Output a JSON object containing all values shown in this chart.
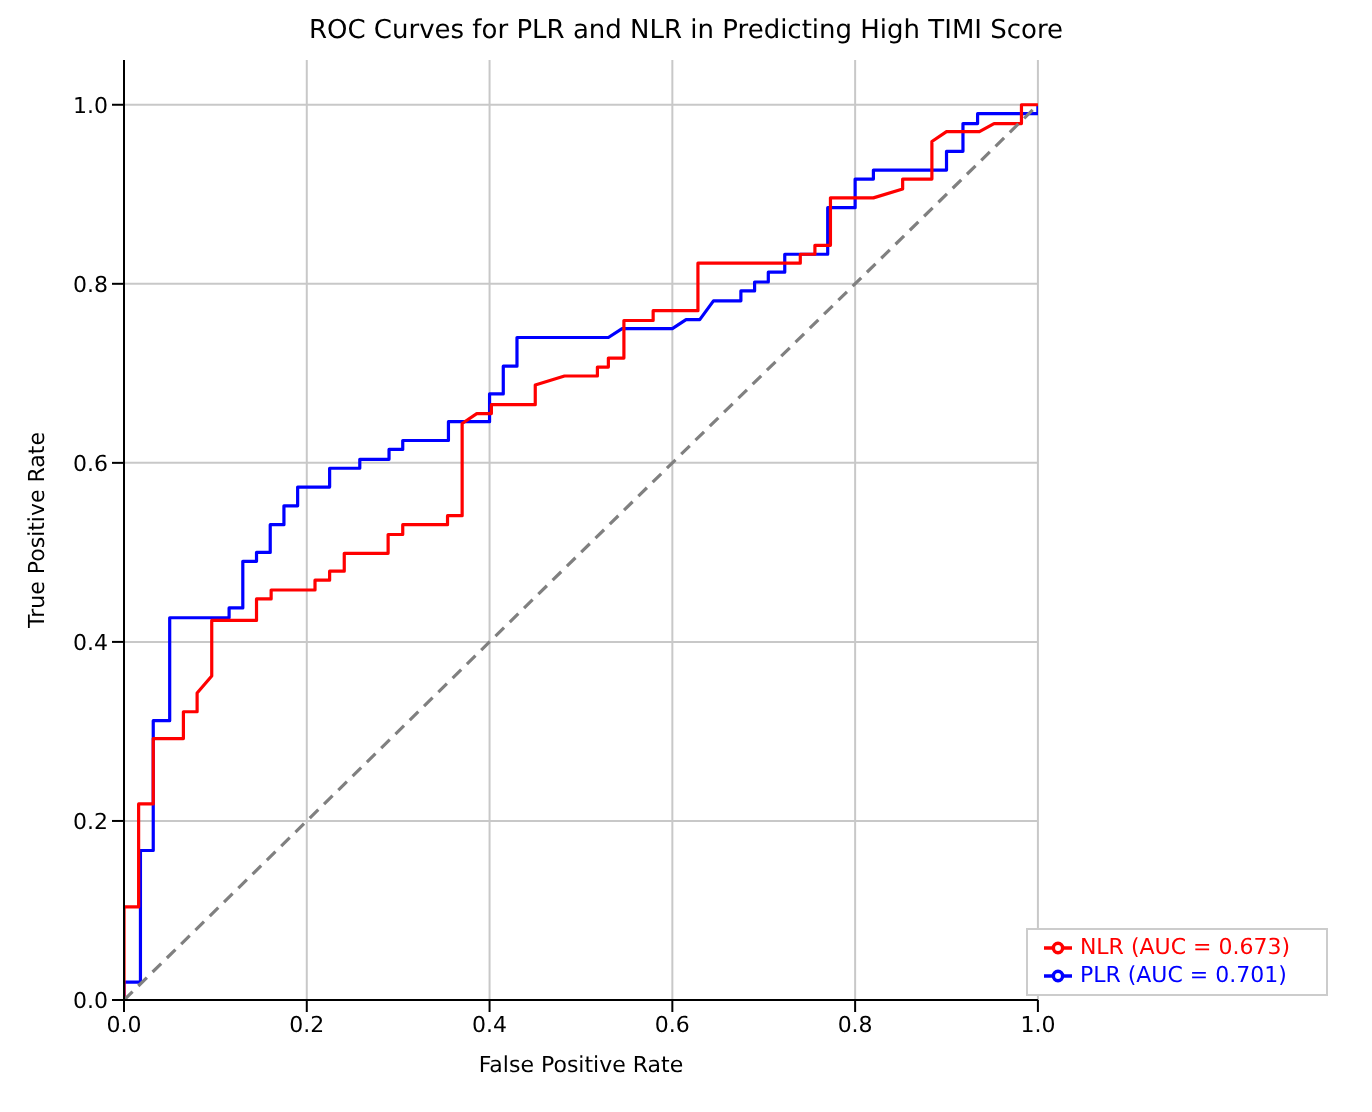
{
  "chart_data": {
    "type": "line",
    "title": "ROC Curves for PLR and NLR in Predicting High TIMI Score",
    "xlabel": "False Positive Rate",
    "ylabel": "True Positive Rate",
    "xlim": [
      0,
      1
    ],
    "ylim": [
      0,
      1.05
    ],
    "xticks": [
      {
        "value": 0,
        "label": "0.0"
      },
      {
        "value": 0.2,
        "label": "0.2"
      },
      {
        "value": 0.4,
        "label": "0.4"
      },
      {
        "value": 0.6,
        "label": "0.6"
      },
      {
        "value": 0.8,
        "label": "0.8"
      },
      {
        "value": 1,
        "label": "1.0"
      }
    ],
    "yticks": [
      {
        "value": 0,
        "label": "0.0"
      },
      {
        "value": 0.2,
        "label": "0.2"
      },
      {
        "value": 0.4,
        "label": "0.4"
      },
      {
        "value": 0.6,
        "label": "0.6"
      },
      {
        "value": 0.8,
        "label": "0.8"
      },
      {
        "value": 1,
        "label": "1.0"
      }
    ],
    "grid": true,
    "legend": "bottom right",
    "series": [
      {
        "name": "PLR (AUC = 0.701)",
        "color": "#0000ff",
        "x": [
          0,
          0,
          0.018,
          0.018,
          0.032,
          0.032,
          0.05,
          0.05,
          0.115,
          0.115,
          0.13,
          0.13,
          0.145,
          0.145,
          0.16,
          0.16,
          0.175,
          0.175,
          0.19,
          0.19,
          0.225,
          0.225,
          0.258,
          0.258,
          0.29,
          0.29,
          0.305,
          0.305,
          0.355,
          0.355,
          0.4,
          0.4,
          0.415,
          0.415,
          0.43,
          0.43,
          0.53,
          0.545,
          0.6,
          0.615,
          0.63,
          0.645,
          0.675,
          0.675,
          0.69,
          0.69,
          0.705,
          0.705,
          0.723,
          0.723,
          0.77,
          0.77,
          0.8,
          0.8,
          0.82,
          0.82,
          0.9,
          0.9,
          0.918,
          0.918,
          0.934,
          0.934,
          1,
          1
        ],
        "values": [
          0,
          0.02,
          0.02,
          0.167,
          0.167,
          0.312,
          0.312,
          0.427,
          0.427,
          0.438,
          0.438,
          0.49,
          0.49,
          0.5,
          0.5,
          0.531,
          0.531,
          0.552,
          0.552,
          0.573,
          0.573,
          0.594,
          0.594,
          0.604,
          0.604,
          0.615,
          0.615,
          0.625,
          0.625,
          0.646,
          0.646,
          0.677,
          0.677,
          0.708,
          0.708,
          0.74,
          0.74,
          0.75,
          0.75,
          0.76,
          0.76,
          0.781,
          0.781,
          0.792,
          0.792,
          0.802,
          0.802,
          0.813,
          0.813,
          0.833,
          0.833,
          0.885,
          0.885,
          0.917,
          0.917,
          0.927,
          0.927,
          0.948,
          0.948,
          0.979,
          0.979,
          0.99,
          0.99,
          1
        ]
      },
      {
        "name": "NLR (AUC = 0.673)",
        "color": "#ff0000",
        "x": [
          0,
          0,
          0.016,
          0.016,
          0.032,
          0.032,
          0.065,
          0.065,
          0.08,
          0.08,
          0.096,
          0.096,
          0.145,
          0.145,
          0.161,
          0.161,
          0.209,
          0.209,
          0.225,
          0.225,
          0.241,
          0.241,
          0.289,
          0.289,
          0.305,
          0.305,
          0.354,
          0.354,
          0.37,
          0.37,
          0.386,
          0.402,
          0.402,
          0.45,
          0.45,
          0.482,
          0.518,
          0.518,
          0.53,
          0.53,
          0.547,
          0.547,
          0.579,
          0.579,
          0.628,
          0.628,
          0.74,
          0.74,
          0.756,
          0.756,
          0.773,
          0.773,
          0.82,
          0.852,
          0.852,
          0.884,
          0.884,
          0.9,
          0.936,
          0.952,
          0.982,
          0.982,
          1
        ],
        "values": [
          0,
          0.104,
          0.104,
          0.219,
          0.219,
          0.292,
          0.292,
          0.322,
          0.322,
          0.343,
          0.362,
          0.424,
          0.424,
          0.448,
          0.448,
          0.458,
          0.458,
          0.469,
          0.469,
          0.479,
          0.479,
          0.499,
          0.499,
          0.52,
          0.52,
          0.531,
          0.531,
          0.541,
          0.541,
          0.644,
          0.655,
          0.655,
          0.665,
          0.665,
          0.687,
          0.697,
          0.697,
          0.707,
          0.707,
          0.717,
          0.717,
          0.759,
          0.759,
          0.77,
          0.77,
          0.823,
          0.823,
          0.833,
          0.833,
          0.843,
          0.843,
          0.896,
          0.896,
          0.906,
          0.917,
          0.917,
          0.959,
          0.97,
          0.97,
          0.979,
          0.979,
          1,
          1
        ]
      },
      {
        "color": "#808080",
        "line_style": "dashed",
        "x": [
          0,
          1
        ],
        "values": [
          0,
          1
        ]
      }
    ]
  }
}
